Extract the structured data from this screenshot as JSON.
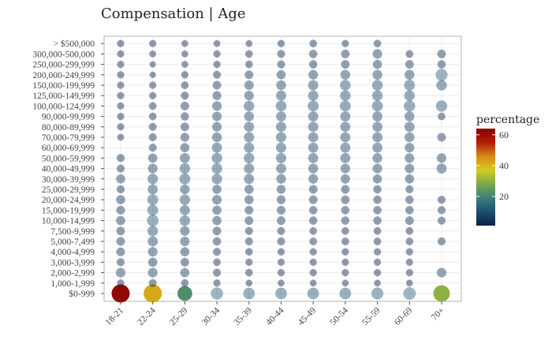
{
  "chart_data": {
    "type": "scatter",
    "title": "Compensation | Age",
    "x_categories": [
      "18-21",
      "22-24",
      "25-29",
      "30-34",
      "35-39",
      "40-44",
      "45-49",
      "50-54",
      "55-59",
      "60-69",
      "70+"
    ],
    "y_categories": [
      "$0-999",
      "1,000-1,999",
      "2,000-2,999",
      "3,000-3,999",
      "4,000-4,999",
      "5,000-7,499",
      "7,500-9,999",
      "10,000-14,999",
      "15,000-19,999",
      "20,000-24,999",
      "25,000-29,999",
      "30,000-39,999",
      "40,000-49,999",
      "50,000-59,999",
      "60,000-69,999",
      "70,000-79,999",
      "80,000-89,999",
      "90,000-99,999",
      "100,000-124,999",
      "125,000-149,999",
      "150,000-199,999",
      "200,000-249,999",
      "250,000-299,999",
      "300,000-500,000",
      "> $500,000"
    ],
    "size_and_color_variable": "percentage",
    "legend": {
      "title": "percentage",
      "position": "right",
      "ticks": [
        20,
        40,
        60
      ],
      "range": [
        1,
        64
      ]
    },
    "matrix_percentages": [
      [
        62,
        42,
        22,
        13,
        11,
        11,
        11,
        11,
        12,
        14,
        30
      ],
      [
        2,
        3,
        2.5,
        2,
        1.5,
        1.5,
        1.5,
        1.5,
        1.5,
        1.5,
        0
      ],
      [
        6,
        6,
        5,
        3,
        2.5,
        2,
        2,
        2,
        2,
        2,
        6
      ],
      [
        3,
        5,
        4,
        2.5,
        2,
        2,
        2,
        2,
        2,
        2,
        0
      ],
      [
        4,
        6,
        5,
        3,
        2.5,
        2,
        2,
        2,
        2,
        2,
        0
      ],
      [
        4,
        7,
        5.5,
        3.5,
        3,
        3,
        2.5,
        2.5,
        2.5,
        2.5,
        3
      ],
      [
        4,
        8,
        6,
        4,
        3,
        3,
        2.5,
        2.5,
        2.5,
        2.5,
        0
      ],
      [
        5,
        11,
        8,
        5,
        4,
        4,
        3.5,
        3.5,
        3.5,
        4,
        3
      ],
      [
        4,
        9,
        7,
        5,
        4,
        4,
        3.5,
        3.5,
        3.5,
        3.5,
        3
      ],
      [
        5,
        9,
        8,
        6,
        5,
        4.5,
        4,
        4,
        3.5,
        3.5,
        3
      ],
      [
        3,
        7,
        6,
        5,
        5,
        4.5,
        4,
        4,
        3.5,
        3,
        0
      ],
      [
        5,
        8,
        9,
        8,
        7,
        6,
        6,
        5.5,
        5,
        5,
        0
      ],
      [
        3,
        6,
        8,
        8,
        7.5,
        7,
        6.5,
        6,
        6,
        5.5,
        7
      ],
      [
        3,
        5,
        7,
        8,
        8,
        7.5,
        7,
        7,
        6.5,
        6,
        6
      ],
      [
        0,
        3,
        5,
        7,
        7.5,
        7.5,
        7,
        7,
        7,
        6,
        0
      ],
      [
        1.5,
        3,
        4.5,
        6.5,
        7.5,
        7.5,
        7,
        7,
        7,
        6.5,
        4
      ],
      [
        2,
        3,
        4,
        6,
        7,
        7.5,
        7.5,
        7,
        7,
        7,
        0
      ],
      [
        2,
        2.5,
        3.5,
        5.5,
        6.5,
        7,
        7,
        7,
        7,
        6.5,
        2.5
      ],
      [
        2,
        2.5,
        4,
        6,
        8,
        8.5,
        9,
        9,
        9,
        10,
        10
      ],
      [
        2,
        2,
        3,
        4.5,
        6,
        7,
        7.5,
        8,
        8,
        8,
        0
      ],
      [
        2,
        2,
        2.5,
        4,
        5.5,
        6.5,
        7.5,
        8.5,
        8.5,
        9,
        8
      ],
      [
        2,
        1,
        2,
        3,
        4,
        5,
        6,
        6.5,
        6.5,
        6.5,
        12
      ],
      [
        2,
        1,
        1.5,
        2,
        2.5,
        3,
        3.5,
        4,
        5,
        4,
        3.5
      ],
      [
        2,
        1.5,
        1.5,
        2,
        2.5,
        3,
        3.5,
        4,
        6,
        2.5,
        4
      ],
      [
        2,
        2,
        1.5,
        1.5,
        1.5,
        2,
        2.5,
        2,
        2.5,
        0,
        0
      ]
    ]
  },
  "colors": {
    "gradient": [
      "#0a1f44",
      "#1d4f73",
      "#3b7f7a",
      "#7aa84a",
      "#d4cc22",
      "#d88a12",
      "#b01c0a",
      "#8b0000"
    ],
    "grid": "#ebebeb",
    "panel_border": "#b0b0b0"
  }
}
